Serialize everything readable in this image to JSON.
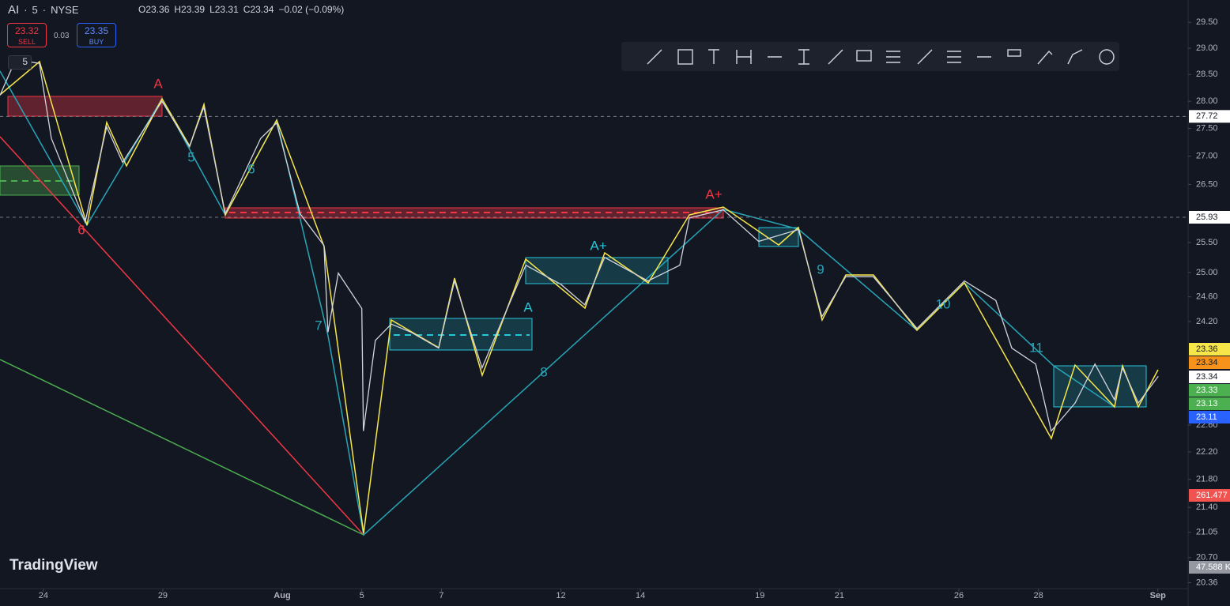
{
  "header": {
    "symbol": "AI",
    "interval": "5",
    "exchange": "NYSE",
    "open": "O23.36",
    "high": "H23.39",
    "low": "L23.31",
    "close": "C23.34",
    "change": "−0.02 (−0.09%)",
    "sell_price": "23.32",
    "sell_label": "SELL",
    "spread": "0.03",
    "buy_price": "23.35",
    "buy_label": "BUY",
    "indicator_count": "5",
    "logo": "TradingView"
  },
  "chart_data": {
    "type": "line",
    "log_scale": true,
    "grid": false,
    "x": [
      -1.09,
      -0.7,
      -0.1,
      0.2,
      1.05,
      1.59,
      1.99,
      2.98,
      3.67,
      4.03,
      4.57,
      5.46,
      5.86,
      6.45,
      7.05,
      7.15,
      7.41,
      8.0,
      8.04,
      8.34,
      8.74,
      9.24,
      9.93,
      10.33,
      11.02,
      12.12,
      13.01,
      13.6,
      14.1,
      15.19,
      15.99,
      16.23,
      17.08,
      17.97,
      18.97,
      19.56,
      20.16,
      20.85,
      21.95,
      23.14,
      23.93,
      24.33,
      24.93,
      25.32,
      25.92,
      26.42,
      26.91,
      27.11,
      27.51,
      28.01
    ],
    "series": [
      {
        "name": "AI",
        "color": "#d1d4dc",
        "values": [
          28.11,
          28.78,
          28.71,
          27.32,
          25.85,
          27.53,
          26.89,
          28.0,
          27.17,
          27.89,
          25.99,
          27.32,
          27.6,
          25.99,
          25.45,
          24.03,
          24.99,
          24.41,
          22.51,
          23.9,
          24.16,
          24.03,
          23.78,
          24.86,
          23.47,
          25.12,
          24.8,
          24.47,
          25.25,
          24.86,
          25.12,
          25.92,
          26.06,
          25.52,
          25.72,
          24.28,
          24.93,
          24.93,
          24.09,
          24.86,
          24.54,
          23.78,
          23.53,
          22.51,
          22.93,
          23.53,
          22.98,
          23.47,
          22.93,
          23.34
        ]
      }
    ],
    "xlim": [
      -1.09,
      28.76
    ],
    "xticks": [
      {
        "value": 0,
        "label": "24"
      },
      {
        "value": 3,
        "label": "29"
      },
      {
        "value": 6,
        "label": "Aug"
      },
      {
        "value": 8,
        "label": "5"
      },
      {
        "value": 10,
        "label": "7"
      },
      {
        "value": 13,
        "label": "12"
      },
      {
        "value": 15,
        "label": "14"
      },
      {
        "value": 18,
        "label": "19"
      },
      {
        "value": 20,
        "label": "21"
      },
      {
        "value": 23,
        "label": "26"
      },
      {
        "value": 25,
        "label": "28"
      },
      {
        "value": 28,
        "label": "Sep"
      }
    ],
    "ylim": [
      20.28,
      29.94
    ],
    "yticks": [
      {
        "value": 29.5,
        "label": "29.50"
      },
      {
        "value": 29,
        "label": "29.00"
      },
      {
        "value": 28.5,
        "label": "28.50"
      },
      {
        "value": 28,
        "label": "28.00"
      },
      {
        "value": 27.5,
        "label": "27.50"
      },
      {
        "value": 27,
        "label": "27.00"
      },
      {
        "value": 26.5,
        "label": "26.50"
      },
      {
        "value": 25.5,
        "label": "25.50"
      },
      {
        "value": 25,
        "label": "25.00"
      },
      {
        "value": 24.6,
        "label": "24.60"
      },
      {
        "value": 24.2,
        "label": "24.20"
      },
      {
        "value": 22.6,
        "label": "22.60"
      },
      {
        "value": 22.2,
        "label": "22.20"
      },
      {
        "value": 21.8,
        "label": "21.80"
      },
      {
        "value": 21.4,
        "label": "21.40"
      },
      {
        "value": 21.05,
        "label": "21.05"
      },
      {
        "value": 20.7,
        "label": "20.70"
      },
      {
        "value": 20.36,
        "label": "20.36"
      }
    ],
    "hlines": [
      {
        "value": 27.72,
        "label": "27.72"
      },
      {
        "value": 25.93,
        "label": "25.93"
      }
    ],
    "axis_badges": [
      {
        "label": "23.36",
        "color": "#f7e64a"
      },
      {
        "label": "23.34",
        "color": "#f7931a"
      },
      {
        "label": "23.34",
        "color": "#ffffff"
      },
      {
        "label": "23.33",
        "color": "#4caf50"
      },
      {
        "label": "23.13",
        "color": "#4caf50"
      },
      {
        "label": "23.11",
        "color": "#2962ff"
      },
      {
        "label": "261.477",
        "color": "#f05350"
      },
      {
        "label": "47.588 K",
        "color": "#9598a1"
      }
    ],
    "annotations": [
      "A",
      "A+",
      "A+",
      "A",
      "6",
      "5",
      "6",
      "7",
      "8",
      "9",
      "10",
      "11"
    ]
  }
}
